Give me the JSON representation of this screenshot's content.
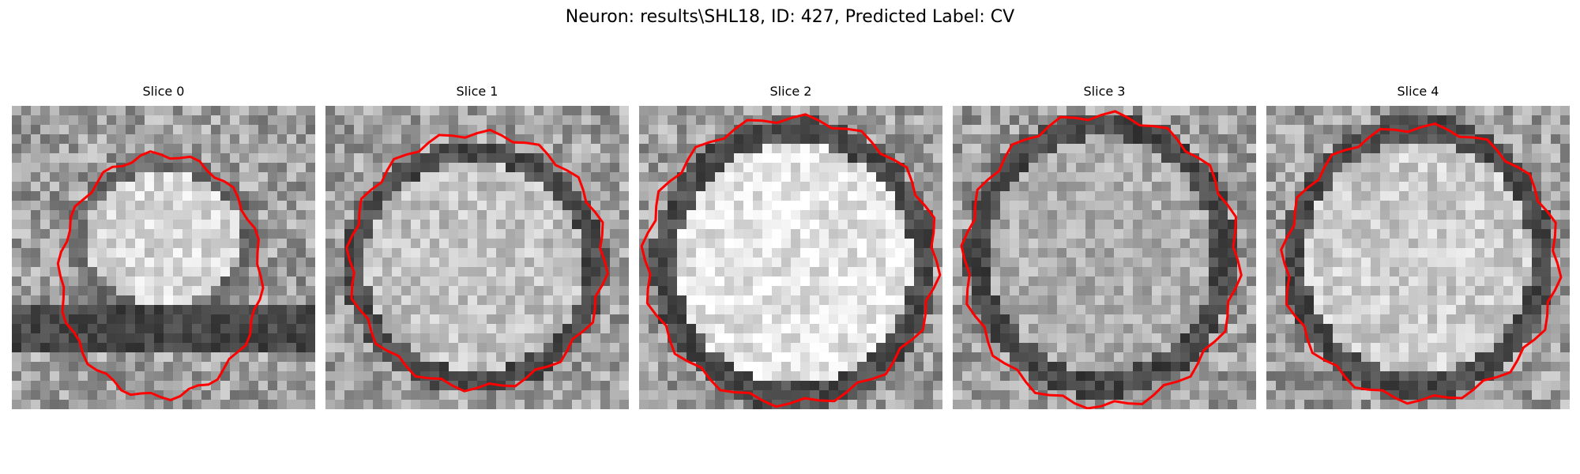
{
  "figure": {
    "title": "Neuron: results\\SHL18, ID: 427, Predicted Label: CV"
  },
  "slices": [
    {
      "title": "Slice 0"
    },
    {
      "title": "Slice 1"
    },
    {
      "title": "Slice 2"
    },
    {
      "title": "Slice 3"
    },
    {
      "title": "Slice 4"
    }
  ],
  "colors": {
    "contour": "#ff0000",
    "background": "#ffffff"
  }
}
